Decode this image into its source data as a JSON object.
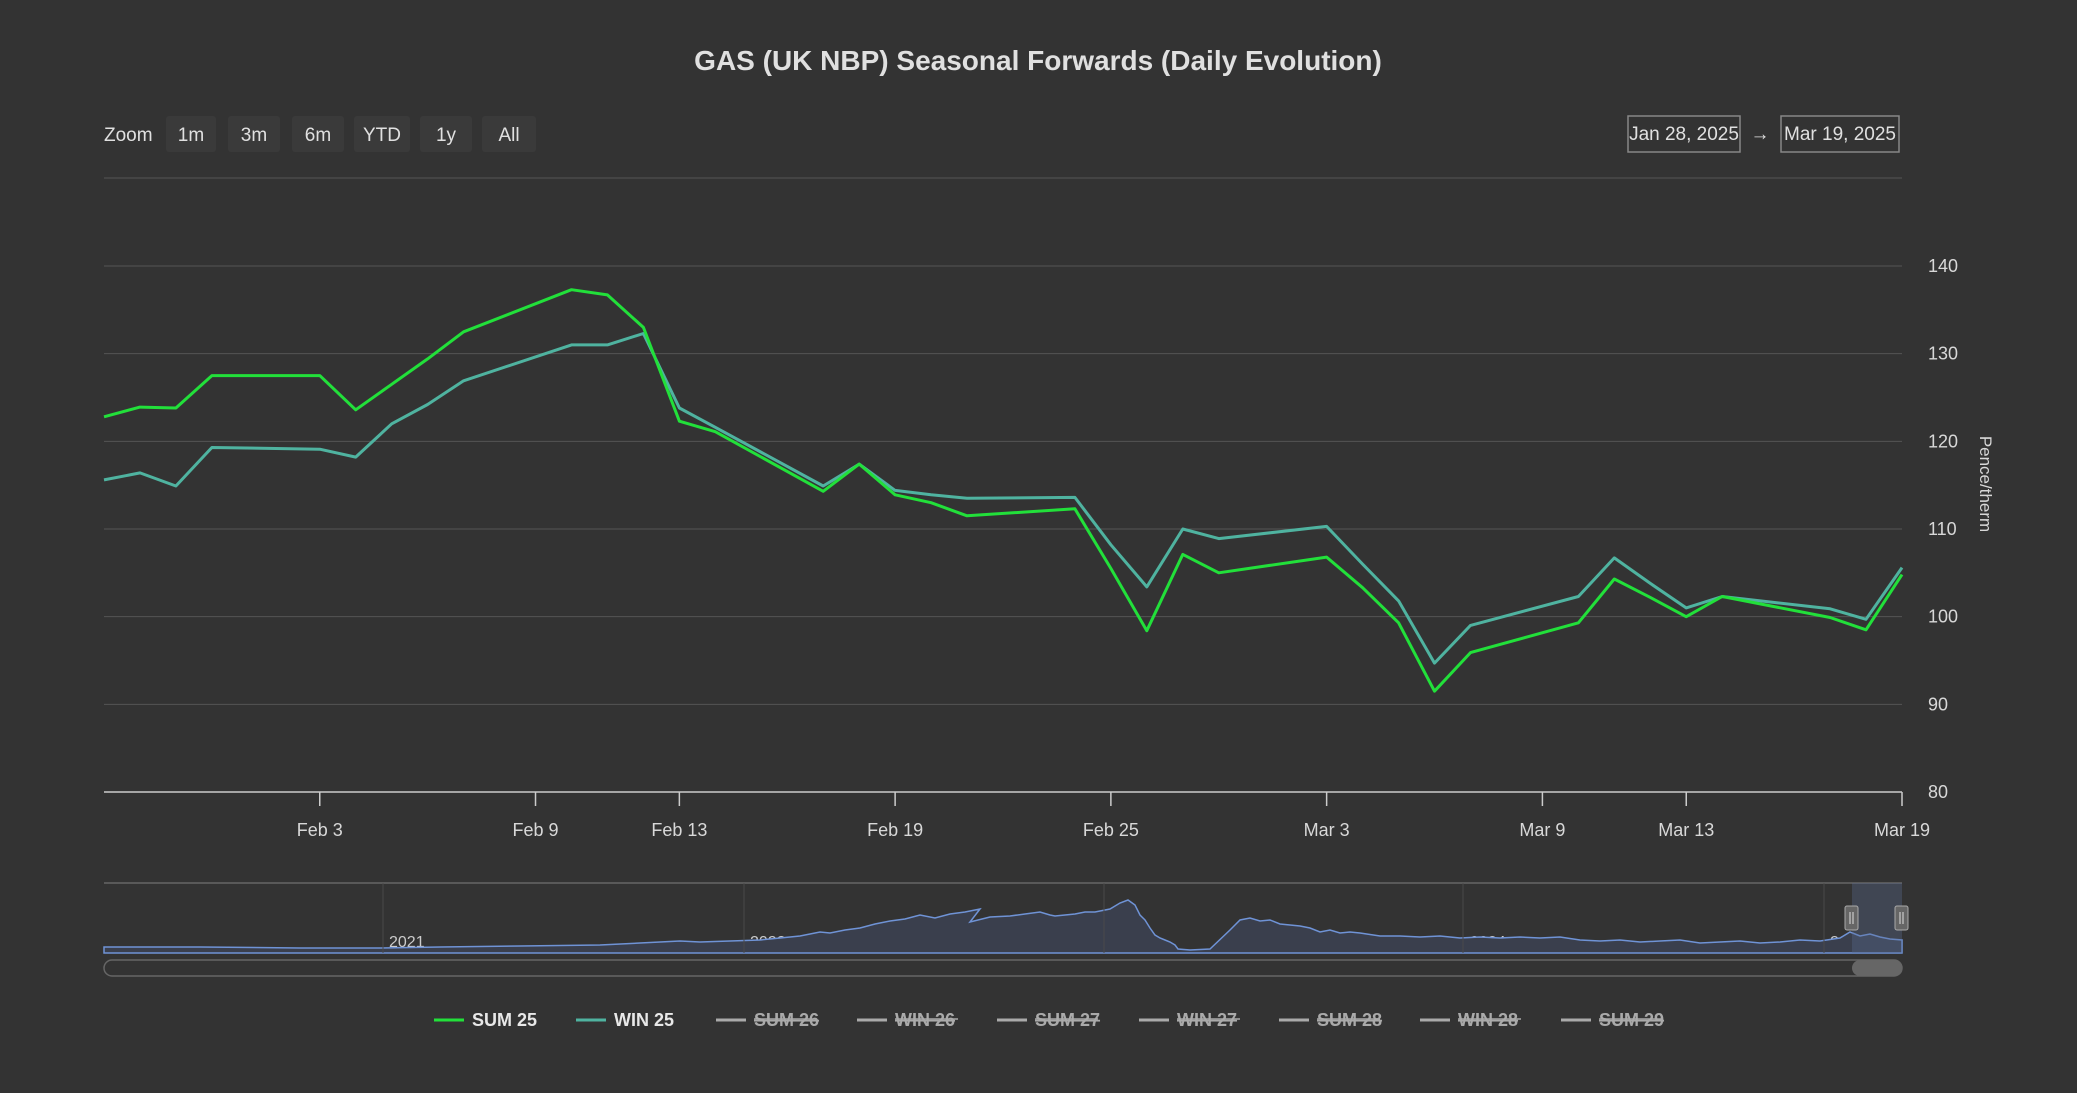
{
  "colors": {
    "background": "#333333",
    "sum25": "#22e03a",
    "win25": "#4fb3a0",
    "hidden": "#aaaaaa",
    "navigator_line": "#6f93d6"
  },
  "toolbar": {
    "zoom_label": "Zoom",
    "buttons": [
      "1m",
      "3m",
      "6m",
      "YTD",
      "1y",
      "All"
    ],
    "range_from": "Jan 28, 2025",
    "range_arrow": "→",
    "range_to": "Mar 19, 2025"
  },
  "navigator": {
    "years": [
      "2021",
      "2022",
      "2023",
      "2024",
      "2025"
    ]
  },
  "chart_data": {
    "type": "line",
    "title": "GAS (UK NBP) Seasonal Forwards (Daily Evolution)",
    "xlabel": "",
    "ylabel": "Pence/therm",
    "ylim": [
      80,
      140
    ],
    "yticks": [
      80,
      90,
      100,
      110,
      120,
      130,
      140
    ],
    "x_range": [
      "2025-01-28",
      "2025-03-19"
    ],
    "xticks": [
      {
        "date": "2025-02-03",
        "label": "Feb 3"
      },
      {
        "date": "2025-02-09",
        "label": "Feb 9"
      },
      {
        "date": "2025-02-13",
        "label": "Feb 13"
      },
      {
        "date": "2025-02-19",
        "label": "Feb 19"
      },
      {
        "date": "2025-02-25",
        "label": "Feb 25"
      },
      {
        "date": "2025-03-03",
        "label": "Mar 3"
      },
      {
        "date": "2025-03-09",
        "label": "Mar 9"
      },
      {
        "date": "2025-03-13",
        "label": "Mar 13"
      },
      {
        "date": "2025-03-19",
        "label": "Mar 19"
      }
    ],
    "grid": true,
    "legend_position": "bottom-center",
    "legend": [
      {
        "name": "SUM 25",
        "visible": true
      },
      {
        "name": "WIN 25",
        "visible": true
      },
      {
        "name": "SUM 26",
        "visible": false
      },
      {
        "name": "WIN 26",
        "visible": false
      },
      {
        "name": "SUM 27",
        "visible": false
      },
      {
        "name": "WIN 27",
        "visible": false
      },
      {
        "name": "SUM 28",
        "visible": false
      },
      {
        "name": "WIN 28",
        "visible": false
      },
      {
        "name": "SUM 29",
        "visible": false
      }
    ],
    "series": [
      {
        "name": "SUM 25",
        "points": [
          [
            "2025-01-28",
            122.8
          ],
          [
            "2025-01-29",
            123.9
          ],
          [
            "2025-01-30",
            123.8
          ],
          [
            "2025-01-31",
            127.5
          ],
          [
            "2025-02-03",
            127.5
          ],
          [
            "2025-02-04",
            123.6
          ],
          [
            "2025-02-05",
            126.5
          ],
          [
            "2025-02-06",
            129.4
          ],
          [
            "2025-02-07",
            132.5
          ],
          [
            "2025-02-10",
            137.3
          ],
          [
            "2025-02-11",
            136.7
          ],
          [
            "2025-02-12",
            133.0
          ],
          [
            "2025-02-13",
            122.3
          ],
          [
            "2025-02-14",
            121.1
          ],
          [
            "2025-02-17",
            114.3
          ],
          [
            "2025-02-18",
            117.4
          ],
          [
            "2025-02-19",
            113.9
          ],
          [
            "2025-02-20",
            113.0
          ],
          [
            "2025-02-21",
            111.5
          ],
          [
            "2025-02-24",
            112.3
          ],
          [
            "2025-02-25",
            105.5
          ],
          [
            "2025-02-26",
            98.4
          ],
          [
            "2025-02-27",
            107.1
          ],
          [
            "2025-02-28",
            105.0
          ],
          [
            "2025-03-03",
            106.8
          ],
          [
            "2025-03-04",
            103.3
          ],
          [
            "2025-03-05",
            99.3
          ],
          [
            "2025-03-06",
            91.5
          ],
          [
            "2025-03-07",
            95.9
          ],
          [
            "2025-03-10",
            99.3
          ],
          [
            "2025-03-11",
            104.3
          ],
          [
            "2025-03-12",
            102.2
          ],
          [
            "2025-03-13",
            100.0
          ],
          [
            "2025-03-14",
            102.3
          ],
          [
            "2025-03-17",
            99.9
          ],
          [
            "2025-03-18",
            98.5
          ],
          [
            "2025-03-19",
            104.8
          ]
        ]
      },
      {
        "name": "WIN 25",
        "points": [
          [
            "2025-01-28",
            115.6
          ],
          [
            "2025-01-29",
            116.4
          ],
          [
            "2025-01-30",
            114.9
          ],
          [
            "2025-01-31",
            119.3
          ],
          [
            "2025-02-03",
            119.1
          ],
          [
            "2025-02-04",
            118.2
          ],
          [
            "2025-02-05",
            122.0
          ],
          [
            "2025-02-06",
            124.2
          ],
          [
            "2025-02-07",
            126.9
          ],
          [
            "2025-02-10",
            131.0
          ],
          [
            "2025-02-11",
            131.0
          ],
          [
            "2025-02-12",
            132.3
          ],
          [
            "2025-02-13",
            123.8
          ],
          [
            "2025-02-14",
            121.6
          ],
          [
            "2025-02-17",
            114.9
          ],
          [
            "2025-02-18",
            117.4
          ],
          [
            "2025-02-19",
            114.4
          ],
          [
            "2025-02-20",
            113.9
          ],
          [
            "2025-02-21",
            113.5
          ],
          [
            "2025-02-24",
            113.6
          ],
          [
            "2025-02-25",
            108.2
          ],
          [
            "2025-02-26",
            103.4
          ],
          [
            "2025-02-27",
            110.0
          ],
          [
            "2025-02-28",
            108.9
          ],
          [
            "2025-03-03",
            110.3
          ],
          [
            "2025-03-04",
            106.0
          ],
          [
            "2025-03-05",
            101.8
          ],
          [
            "2025-03-06",
            94.7
          ],
          [
            "2025-03-07",
            99.0
          ],
          [
            "2025-03-10",
            102.3
          ],
          [
            "2025-03-11",
            106.7
          ],
          [
            "2025-03-12",
            103.8
          ],
          [
            "2025-03-13",
            101.0
          ],
          [
            "2025-03-14",
            102.3
          ],
          [
            "2025-03-17",
            100.9
          ],
          [
            "2025-03-18",
            99.7
          ],
          [
            "2025-03-19",
            105.6
          ]
        ]
      }
    ]
  }
}
